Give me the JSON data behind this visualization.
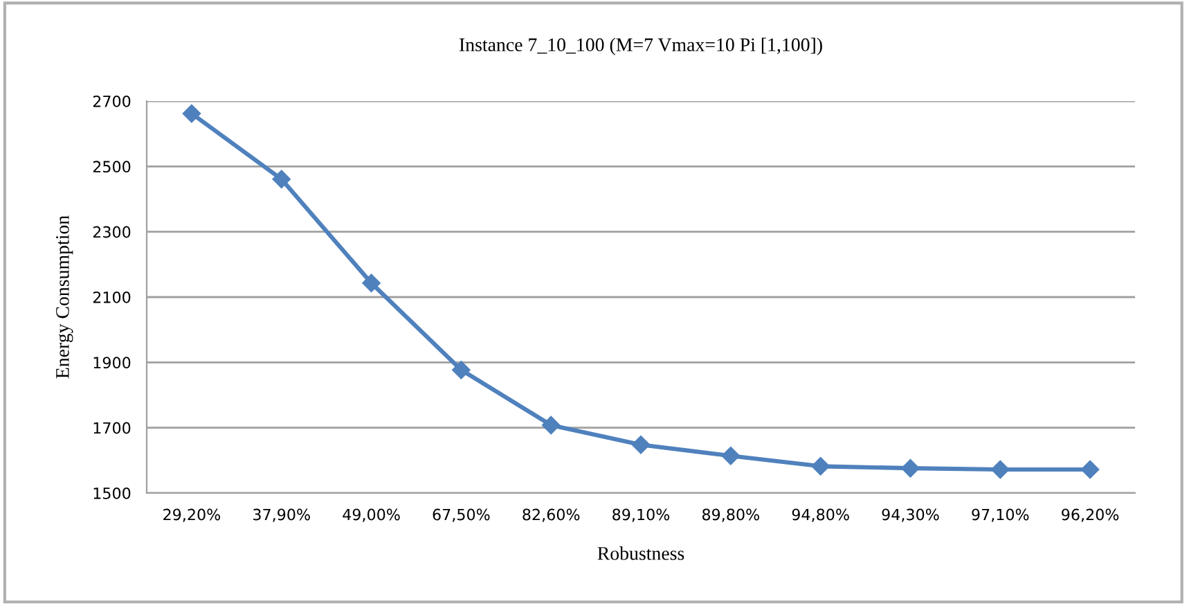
{
  "chart_data": {
    "type": "line",
    "title": "Instance 7_10_100 (M=7 Vmax=10 Pi [1,100])",
    "xlabel": "Robustness",
    "ylabel": "Energy Consumption",
    "categories": [
      "29,20%",
      "37,90%",
      "49,00%",
      "67,50%",
      "82,60%",
      "89,10%",
      "89,80%",
      "94,80%",
      "94,30%",
      "97,10%",
      "96,20%"
    ],
    "series": [
      {
        "color": "#4f81bd",
        "values": [
          2662,
          2461,
          2143,
          1877,
          1708,
          1648,
          1614,
          1582,
          1576,
          1572,
          1572
        ]
      }
    ],
    "ylim": [
      1500,
      2700
    ],
    "yticks": [
      1500,
      1700,
      1900,
      2100,
      2300,
      2500,
      2700
    ],
    "grid": "y",
    "marker": "diamond",
    "line_style": "solid",
    "legend": false
  }
}
